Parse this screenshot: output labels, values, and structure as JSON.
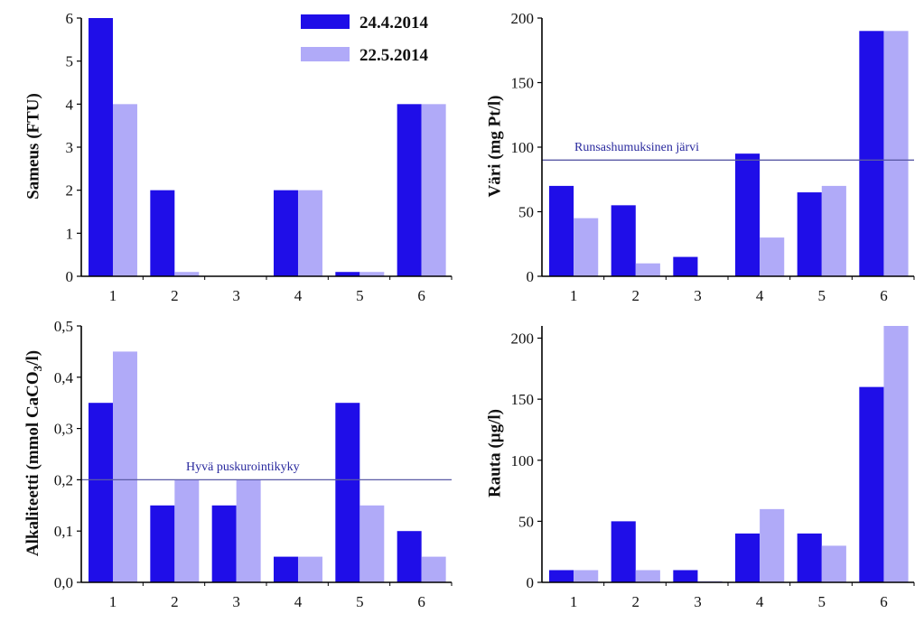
{
  "legend": {
    "items": [
      {
        "label": "24.4.2014",
        "color": "#1f0ee8"
      },
      {
        "label": "22.5.2014",
        "color": "#b0aaf8"
      }
    ]
  },
  "chart_data": [
    {
      "type": "bar",
      "ylabel": "Sameus (FTU)",
      "categories": [
        "1",
        "2",
        "3",
        "4",
        "5",
        "6"
      ],
      "yticks": [
        "0",
        "1",
        "2",
        "3",
        "4",
        "5",
        "6"
      ],
      "ylim": [
        0,
        6
      ],
      "series": [
        {
          "name": "24.4.2014",
          "values": [
            6,
            2,
            0,
            2,
            0.1,
            4
          ]
        },
        {
          "name": "22.5.2014",
          "values": [
            4,
            0.1,
            0,
            2,
            0.1,
            4
          ]
        }
      ]
    },
    {
      "type": "bar",
      "ylabel": "Väri (mg Pt/l)",
      "categories": [
        "1",
        "2",
        "3",
        "4",
        "5",
        "6"
      ],
      "yticks": [
        "0",
        "50",
        "100",
        "150",
        "200"
      ],
      "ylim": [
        0,
        200
      ],
      "reference_line": {
        "value": 90,
        "label": "Runsashumuksinen järvi"
      },
      "series": [
        {
          "name": "24.4.2014",
          "values": [
            70,
            55,
            15,
            95,
            65,
            190
          ]
        },
        {
          "name": "22.5.2014",
          "values": [
            45,
            10,
            0,
            30,
            70,
            190
          ]
        }
      ]
    },
    {
      "type": "bar",
      "ylabel": "Alkaliteetti (mmol CaCO3/l)",
      "ylabel_parts": {
        "before": "Alkaliteetti (mmol CaCO",
        "sub": "3",
        "after": "/l)"
      },
      "categories": [
        "1",
        "2",
        "3",
        "4",
        "5",
        "6"
      ],
      "yticks": [
        "0,0",
        "0,1",
        "0,2",
        "0,3",
        "0,4",
        "0,5"
      ],
      "ylim": [
        0,
        0.5
      ],
      "reference_line": {
        "value": 0.2,
        "label": "Hyvä puskurointikyky"
      },
      "series": [
        {
          "name": "24.4.2014",
          "values": [
            0.35,
            0.15,
            0.15,
            0.05,
            0.35,
            0.1
          ]
        },
        {
          "name": "22.5.2014",
          "values": [
            0.45,
            0.2,
            0.2,
            0.05,
            0.15,
            0.05
          ]
        }
      ]
    },
    {
      "type": "bar",
      "ylabel": "Rauta (µg/l)",
      "categories": [
        "1",
        "2",
        "3",
        "4",
        "5",
        "6"
      ],
      "yticks": [
        "0",
        "50",
        "100",
        "150",
        "200"
      ],
      "ylim": [
        0,
        210
      ],
      "series": [
        {
          "name": "24.4.2014",
          "values": [
            10,
            50,
            10,
            40,
            40,
            160
          ]
        },
        {
          "name": "22.5.2014",
          "values": [
            10,
            10,
            1,
            60,
            30,
            210
          ]
        }
      ]
    }
  ]
}
